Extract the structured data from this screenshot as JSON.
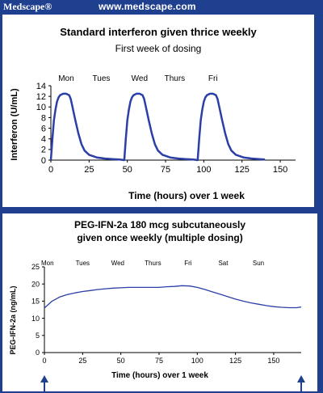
{
  "header": {
    "brand": "Medscape®",
    "url": "www.medscape.com"
  },
  "chart_data": [
    {
      "type": "line",
      "title": "Standard interferon given thrice weekly",
      "subtitle": "First week of dosing",
      "xlabel": "Time (hours) over 1 week",
      "ylabel": "Interferon (U/mL)",
      "xlim": [
        0,
        160
      ],
      "ylim": [
        0,
        14
      ],
      "x_ticks": [
        "0",
        "25",
        "50",
        "75",
        "100",
        "125",
        "150"
      ],
      "y_ticks": [
        "0",
        "2",
        "4",
        "6",
        "8",
        "10",
        "12",
        "14"
      ],
      "grid": false,
      "line_color": "#2b3fa6",
      "day_labels": [
        {
          "label": "Mon",
          "x": 10
        },
        {
          "label": "Tues",
          "x": 33
        },
        {
          "label": "Wed",
          "x": 58
        },
        {
          "label": "Thurs",
          "x": 81
        },
        {
          "label": "Fri",
          "x": 106
        }
      ],
      "series": [
        {
          "x": [
            0,
            1,
            2,
            3,
            4,
            5,
            6,
            8,
            10,
            12,
            13,
            14,
            16,
            18,
            20,
            22,
            25,
            30,
            35,
            40,
            45,
            48,
            49,
            50,
            51,
            52,
            53,
            54,
            56,
            58,
            60,
            61,
            62,
            64,
            66,
            68,
            70,
            73,
            78,
            83,
            88,
            93,
            96,
            97,
            98,
            99,
            100,
            101,
            102,
            104,
            106,
            108,
            109,
            110,
            112,
            114,
            116,
            118,
            121,
            126,
            131,
            136,
            140
          ],
          "y": [
            0,
            4,
            7.5,
            9.5,
            11,
            11.8,
            12.2,
            12.5,
            12.5,
            12.2,
            11.5,
            10.2,
            7.5,
            5,
            3,
            1.8,
            1,
            0.5,
            0.3,
            0.2,
            0.1,
            0,
            4,
            7.5,
            9.5,
            11,
            11.8,
            12.2,
            12.5,
            12.5,
            12.2,
            11.5,
            10.2,
            7.5,
            5,
            3,
            1.8,
            1,
            0.5,
            0.3,
            0.2,
            0.1,
            0,
            4,
            7.5,
            9.5,
            11,
            11.8,
            12.2,
            12.5,
            12.5,
            12.2,
            11.5,
            10.2,
            7.5,
            5,
            3,
            1.8,
            1,
            0.5,
            0.3,
            0.2,
            0.1
          ]
        }
      ]
    },
    {
      "type": "line",
      "title": "PEG-IFN-2a 180 mcg subcutaneously given once weekly (multiple dosing)",
      "title_lines": [
        "PEG-IFN-2a 180 mcg subcutaneously",
        "given once weekly (multiple dosing)"
      ],
      "xlabel": "Time (hours) over 1 week",
      "ylabel": "PEG-IFN-2a (ng/mL)",
      "xlim": [
        0,
        168
      ],
      "ylim": [
        0,
        25
      ],
      "x_ticks": [
        "0",
        "25",
        "50",
        "75",
        "100",
        "125",
        "150"
      ],
      "y_ticks": [
        "0",
        "5",
        "10",
        "15",
        "20",
        "25"
      ],
      "grid": false,
      "line_color": "#2b3fa6",
      "dose_arrows": [
        0,
        168
      ],
      "day_labels": [
        {
          "label": "Mon",
          "x": 2
        },
        {
          "label": "Tues",
          "x": 25
        },
        {
          "label": "Wed",
          "x": 48
        },
        {
          "label": "Thurs",
          "x": 71
        },
        {
          "label": "Fri",
          "x": 94
        },
        {
          "label": "Sat",
          "x": 117
        },
        {
          "label": "Sun",
          "x": 140
        }
      ],
      "series": [
        {
          "x": [
            0,
            5,
            10,
            15,
            20,
            25,
            30,
            35,
            40,
            45,
            50,
            55,
            60,
            65,
            70,
            75,
            80,
            85,
            90,
            95,
            100,
            105,
            110,
            115,
            120,
            125,
            130,
            135,
            140,
            145,
            150,
            155,
            160,
            165,
            168
          ],
          "y": [
            13,
            15,
            16.2,
            16.9,
            17.4,
            17.8,
            18.1,
            18.4,
            18.6,
            18.8,
            18.9,
            19,
            19,
            19,
            19,
            19,
            19.2,
            19.3,
            19.5,
            19.4,
            19,
            18.4,
            17.7,
            17,
            16.3,
            15.6,
            15,
            14.5,
            14.1,
            13.7,
            13.4,
            13.2,
            13.1,
            13.1,
            13.3
          ]
        }
      ]
    }
  ]
}
